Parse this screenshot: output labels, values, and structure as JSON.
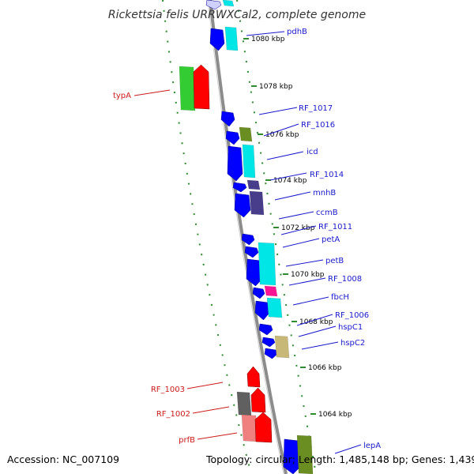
{
  "title": "Rickettsia felis URRWXCal2, complete genome",
  "accession": "Accession: NC_007109",
  "topology": "Topology: circular; Length: 1,485,148 bp; Genes: 1,439",
  "colors": {
    "forward": "#0000ff",
    "cyan": "#00e5e5",
    "green": "#33cc33",
    "red": "#ff0000",
    "olive": "#6b8e23",
    "purple": "#483d8b",
    "magenta": "#ff1493",
    "khaki": "#c8b878",
    "gray": "#606060",
    "salmon": "#f08080",
    "backbone": "#8c8c8c",
    "tick": "#2e8b2e"
  },
  "scale": {
    "unit": "kbp",
    "ticks": [
      "1080 kbp",
      "1078 kbp",
      "1076 kbp",
      "1074 kbp",
      "1072 kbp",
      "1070 kbp",
      "1068 kbp",
      "1066 kbp",
      "1064 kbp"
    ]
  },
  "genes_right": [
    "pdhB",
    "RF_1017",
    "RF_1016",
    "icd",
    "RF_1014",
    "mnhB",
    "ccmB",
    "RF_1011",
    "petA",
    "petB",
    "RF_1008",
    "fbcH",
    "RF_1006",
    "hspC1",
    "hspC2",
    "lepA"
  ],
  "genes_left": [
    "typA",
    "RF_1003",
    "RF_1002",
    "prfB"
  ]
}
